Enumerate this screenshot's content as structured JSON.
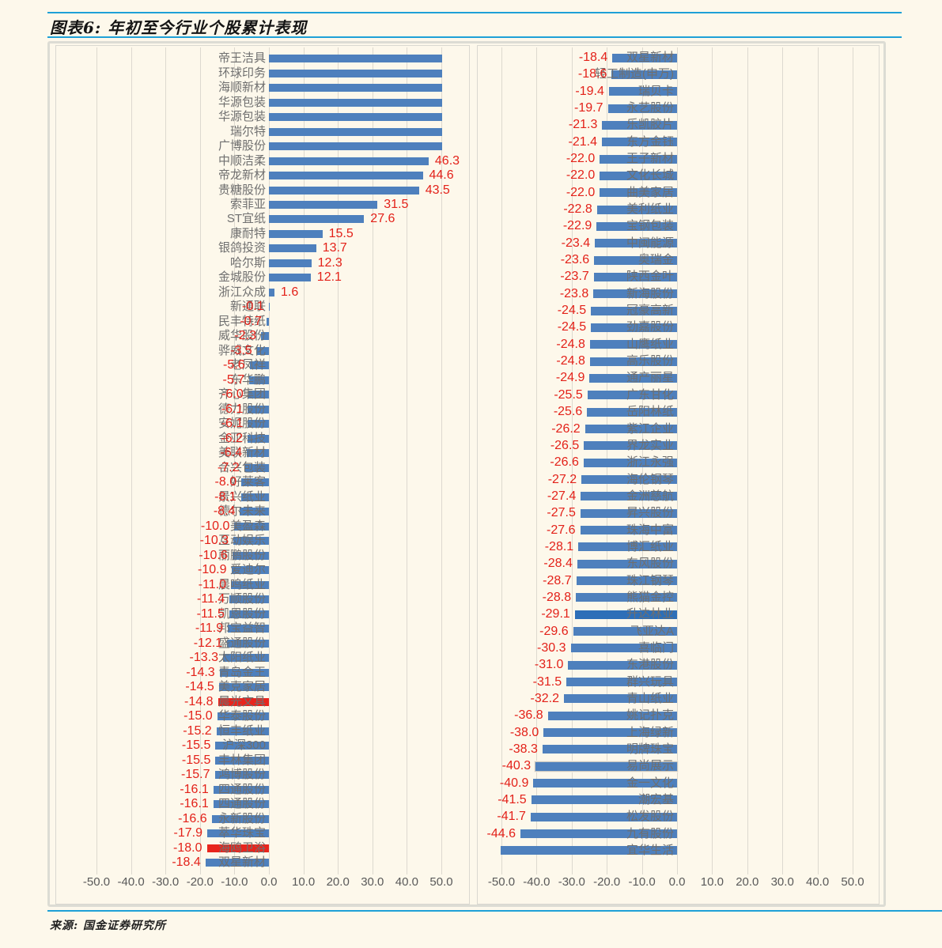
{
  "title": "图表6: 年初至今行业个股累计表现",
  "source": "来源: 国金证券研究所",
  "colors": {
    "page_bg": "#fdf8eb",
    "bar_blue": "#4e80bd",
    "bar_red": "#e8251d",
    "bar_dark_blue": "#2d6fb8",
    "value_red": "#e32119",
    "label_gray": "#6f6f6f",
    "tick_gray": "#595959",
    "rule_blue": "#1ea0d7",
    "gridline": "#ddd9cf"
  },
  "chart_data": [
    {
      "type": "bar",
      "orientation": "horizontal",
      "panel": "left",
      "title": "",
      "xlabel": "",
      "ylabel": "",
      "xlim": [
        -55,
        55
      ],
      "grid": true,
      "legend": false,
      "tick_labels": [
        "-50.0",
        "-40.0",
        "-30.0",
        "-20.0",
        "-10.0",
        "0.0",
        "10.0",
        "20.0",
        "30.0",
        "40.0",
        "50.0"
      ],
      "note": "Top 7 bars are clipped at the +50 axis edge with no value label; value null means not shown in pixels.",
      "rows": [
        {
          "label": "帝王洁具",
          "value": null,
          "clipped": true
        },
        {
          "label": "环球印务",
          "value": null,
          "clipped": true
        },
        {
          "label": "海顺新材",
          "value": null,
          "clipped": true
        },
        {
          "label": "华源包装",
          "value": null,
          "clipped": true
        },
        {
          "label": "华源包装",
          "value": null,
          "clipped": true
        },
        {
          "label": "瑞尔特",
          "value": null,
          "clipped": true
        },
        {
          "label": "广博股份",
          "value": null,
          "clipped": true
        },
        {
          "label": "中顺洁柔",
          "value": 46.3
        },
        {
          "label": "帝龙新材",
          "value": 44.6
        },
        {
          "label": "贵糖股份",
          "value": 43.5
        },
        {
          "label": "索菲亚",
          "value": 31.5
        },
        {
          "label": "ST宜纸",
          "value": 27.6
        },
        {
          "label": "康耐特",
          "value": 15.5
        },
        {
          "label": "银鸽投资",
          "value": 13.7
        },
        {
          "label": "哈尔斯",
          "value": 12.3
        },
        {
          "label": "金城股份",
          "value": 12.1
        },
        {
          "label": "浙江众成",
          "value": 1.6
        },
        {
          "label": "新通联",
          "value": -0.1
        },
        {
          "label": "民丰特纸",
          "value": -0.7
        },
        {
          "label": "威华股份",
          "value": -2.3
        },
        {
          "label": "骅威文化",
          "value": -3.5
        },
        {
          "label": "老凤祥",
          "value": -5.6
        },
        {
          "label": "东华鹏",
          "value": -5.7
        },
        {
          "label": "齐心集团",
          "value": -6.0
        },
        {
          "label": "德力股份",
          "value": -6.1
        },
        {
          "label": "安妮股份",
          "value": -6.1
        },
        {
          "label": "金亚科技",
          "value": -6.2
        },
        {
          "label": "美联新材",
          "value": -6.4
        },
        {
          "label": "合兴包装",
          "value": -7.2
        },
        {
          "label": "好莱客",
          "value": -8.0
        },
        {
          "label": "景兴纸业",
          "value": -8.1
        },
        {
          "label": "德尔未来",
          "value": -8.4
        },
        {
          "label": "美盈森",
          "value": -10.0
        },
        {
          "label": "互动娱乐",
          "value": -10.3
        },
        {
          "label": "丽鹏股份",
          "value": -10.6
        },
        {
          "label": "爱迪尔",
          "value": -10.9
        },
        {
          "label": "晨鸣纸业",
          "value": -11.0
        },
        {
          "label": "万顺股份",
          "value": -11.4
        },
        {
          "label": "凯恩股份",
          "value": -11.5
        },
        {
          "label": "邦宝益智",
          "value": -11.9
        },
        {
          "label": "盛通股份",
          "value": -12.1
        },
        {
          "label": "太阳纸业",
          "value": -13.3
        },
        {
          "label": "青岛金王",
          "value": -14.3
        },
        {
          "label": "美克家居",
          "value": -14.5
        },
        {
          "label": "晨光文具",
          "value": -14.8,
          "highlight": "red"
        },
        {
          "label": "华泰股份",
          "value": -15.0
        },
        {
          "label": "恒丰纸业",
          "value": -15.2
        },
        {
          "label": "沪深300",
          "value": -15.5
        },
        {
          "label": "丰林集团",
          "value": -15.5
        },
        {
          "label": "鸿博股份",
          "value": -15.7
        },
        {
          "label": "四通股份",
          "value": -16.1
        },
        {
          "label": "四通股份",
          "value": -16.1
        },
        {
          "label": "永新股份",
          "value": -16.6
        },
        {
          "label": "萃华珠宝",
          "value": -17.9
        },
        {
          "label": "海鸥卫浴",
          "value": -18.0,
          "highlight": "red"
        },
        {
          "label": "双星新材",
          "value": -18.4
        }
      ]
    },
    {
      "type": "bar",
      "orientation": "horizontal",
      "panel": "right",
      "title": "",
      "xlabel": "",
      "ylabel": "",
      "xlim": [
        -55,
        55
      ],
      "grid": true,
      "legend": false,
      "tick_labels": [
        "-50.0",
        "-40.0",
        "-30.0",
        "-20.0",
        "-10.0",
        "0.0",
        "10.0",
        "20.0",
        "30.0",
        "40.0",
        "50.0"
      ],
      "note": "Last bar is clipped at the -50 axis edge with no value label.",
      "rows": [
        {
          "label": "双星新材",
          "value": -18.4
        },
        {
          "label": "轻工制造(申万)",
          "value": -18.6
        },
        {
          "label": "瑞贝卡",
          "value": -19.4
        },
        {
          "label": "永艺股份",
          "value": -19.7
        },
        {
          "label": "乐凯胶片",
          "value": -21.3
        },
        {
          "label": "东方金钰",
          "value": -21.4
        },
        {
          "label": "王子新材",
          "value": -22.0
        },
        {
          "label": "文化长城",
          "value": -22.0
        },
        {
          "label": "曲美家居",
          "value": -22.0
        },
        {
          "label": "美利纸业",
          "value": -22.8
        },
        {
          "label": "宝钢包装",
          "value": -22.9
        },
        {
          "label": "中闽能源",
          "value": -23.4
        },
        {
          "label": "奥瑞金",
          "value": -23.6
        },
        {
          "label": "陕西金叶",
          "value": -23.7
        },
        {
          "label": "新海股份",
          "value": -23.8
        },
        {
          "label": "冠豪高新",
          "value": -24.5
        },
        {
          "label": "劲嘉股份",
          "value": -24.5
        },
        {
          "label": "山鹰纸业",
          "value": -24.8
        },
        {
          "label": "高乐股份",
          "value": -24.8
        },
        {
          "label": "通产丽星",
          "value": -24.9
        },
        {
          "label": "广东甘化",
          "value": -25.5
        },
        {
          "label": "岳阳林纸",
          "value": -25.6
        },
        {
          "label": "紫江企业",
          "value": -26.2
        },
        {
          "label": "界龙实业",
          "value": -26.5
        },
        {
          "label": "浙江永强",
          "value": -26.6
        },
        {
          "label": "海伦钢琴",
          "value": -27.2
        },
        {
          "label": "金洲慈航",
          "value": -27.4
        },
        {
          "label": "昇兴股份",
          "value": -27.5
        },
        {
          "label": "珠海中富",
          "value": -27.6
        },
        {
          "label": "博汇纸业",
          "value": -28.1
        },
        {
          "label": "东风股份",
          "value": -28.4
        },
        {
          "label": "珠江钢琴",
          "value": -28.7
        },
        {
          "label": "熊猫金控",
          "value": -28.8
        },
        {
          "label": "升达林业",
          "value": -29.1,
          "highlight": "dark"
        },
        {
          "label": "飞亚达A",
          "value": -29.6
        },
        {
          "label": "喜临门",
          "value": -30.3
        },
        {
          "label": "东港股份",
          "value": -31.0
        },
        {
          "label": "群兴玩具",
          "value": -31.5
        },
        {
          "label": "青山纸业",
          "value": -32.2
        },
        {
          "label": "姚记扑克",
          "value": -36.8
        },
        {
          "label": "上海绿新",
          "value": -38.0
        },
        {
          "label": "明牌珠宝",
          "value": -38.3
        },
        {
          "label": "易尚展示",
          "value": -40.3,
          "highlight": "selected"
        },
        {
          "label": "金一文化",
          "value": -40.9
        },
        {
          "label": "潮宏基",
          "value": -41.5
        },
        {
          "label": "松发股份",
          "value": -41.7
        },
        {
          "label": "九有股份",
          "value": -44.6
        },
        {
          "label": "宜华生活",
          "value": null,
          "clipped": true
        }
      ]
    }
  ]
}
